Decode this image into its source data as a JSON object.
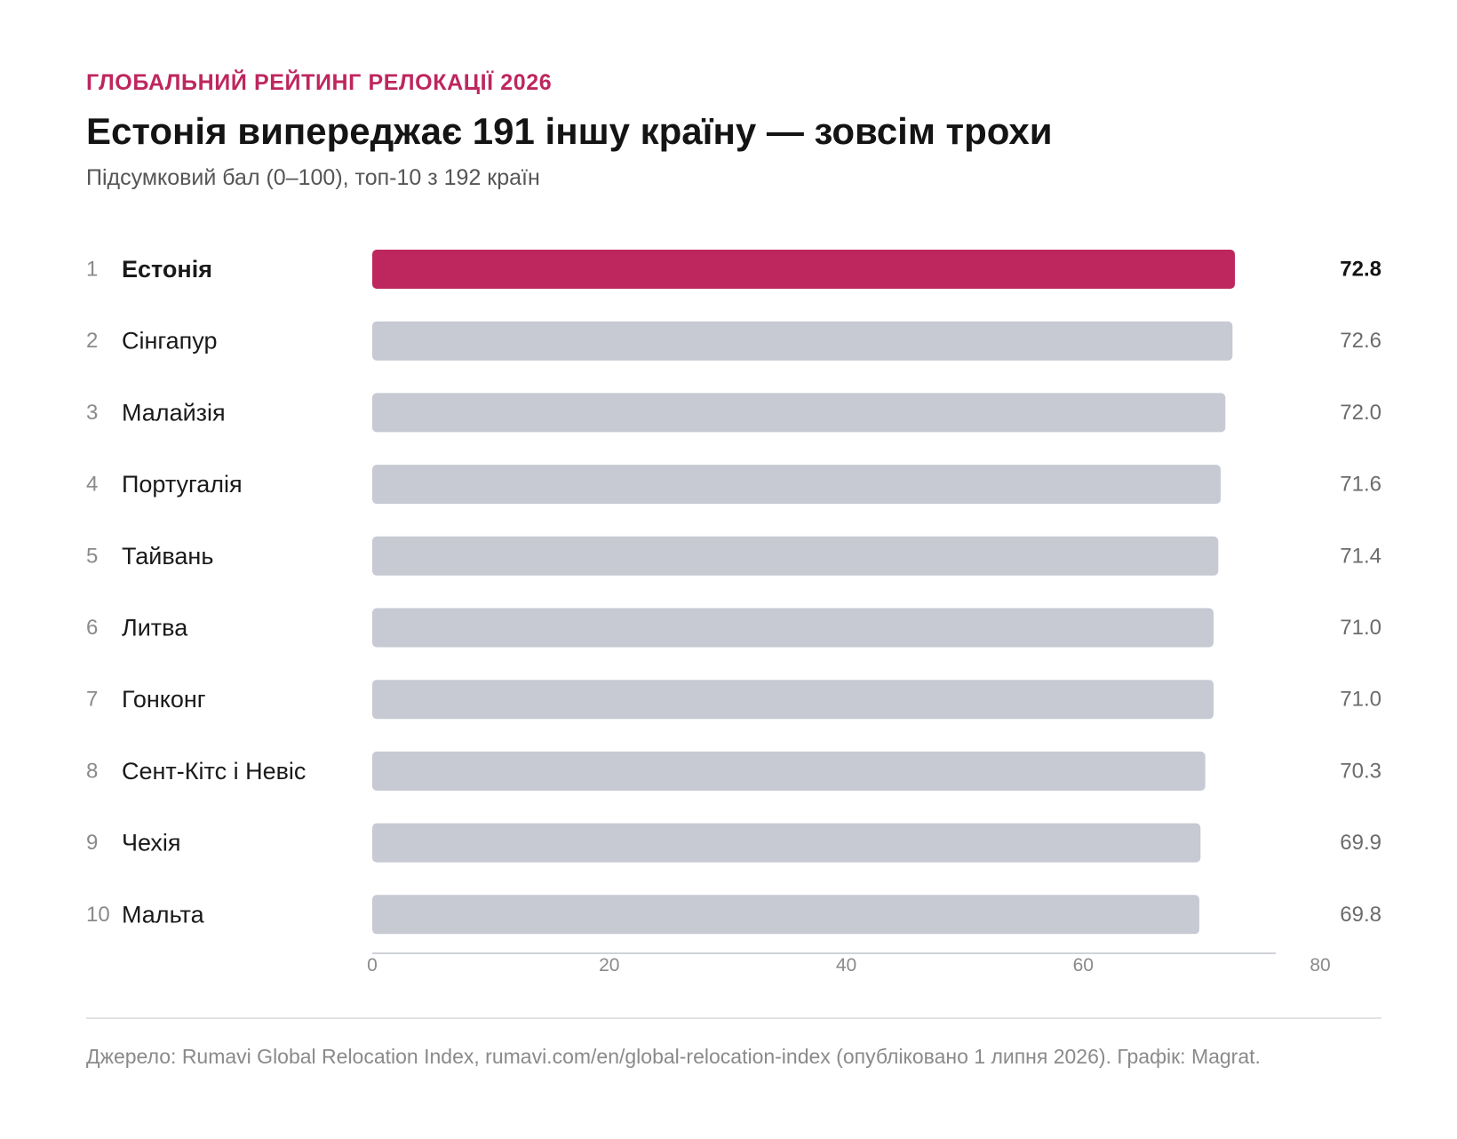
{
  "header": {
    "kicker": "ГЛОБАЛЬНИЙ РЕЙТИНГ РЕЛОКАЦІЇ 2026",
    "title": "Естонія випереджає 191 іншу країну — зовсім трохи",
    "subtitle": "Підсумковий бал (0–100), топ-10 з 192 країн"
  },
  "colors": {
    "highlight": "#be265e",
    "bar": "#c7cad3",
    "axis": "#cfd2d8"
  },
  "chart_data": {
    "type": "bar",
    "orientation": "horizontal",
    "ranks": [
      "1",
      "2",
      "3",
      "4",
      "5",
      "6",
      "7",
      "8",
      "9",
      "10"
    ],
    "categories": [
      "Естонія",
      "Сінгапур",
      "Малайзія",
      "Португалія",
      "Тайвань",
      "Литва",
      "Гонконг",
      "Сент-Кітс і Невіс",
      "Чехія",
      "Мальта"
    ],
    "values": [
      72.8,
      72.6,
      72.0,
      71.6,
      71.4,
      71.0,
      71.0,
      70.3,
      69.9,
      69.8
    ],
    "value_labels": [
      "72.8",
      "72.6",
      "72.0",
      "71.6",
      "71.4",
      "71.0",
      "71.0",
      "70.3",
      "69.9",
      "69.8"
    ],
    "highlight_index": 0,
    "xlim": [
      0,
      80
    ],
    "xticks": [
      0,
      20,
      40,
      60,
      80
    ],
    "xtick_labels": [
      "0",
      "20",
      "40",
      "60",
      "80"
    ],
    "grid": false,
    "legend": false
  },
  "footer": {
    "source": "Джерело: Rumavi Global Relocation Index, rumavi.com/en/global-relocation-index (опубліковано 1 липня 2026). Графік: Magrat."
  }
}
